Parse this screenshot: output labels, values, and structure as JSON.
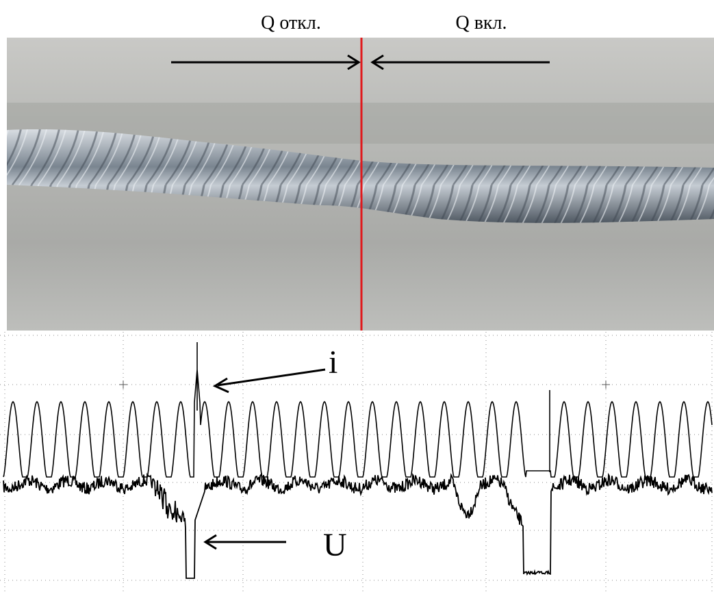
{
  "header": {
    "left_label": "Q откл.",
    "right_label": "Q вкл."
  },
  "oscillogram": {
    "current_label": "i",
    "voltage_label": "U"
  }
}
